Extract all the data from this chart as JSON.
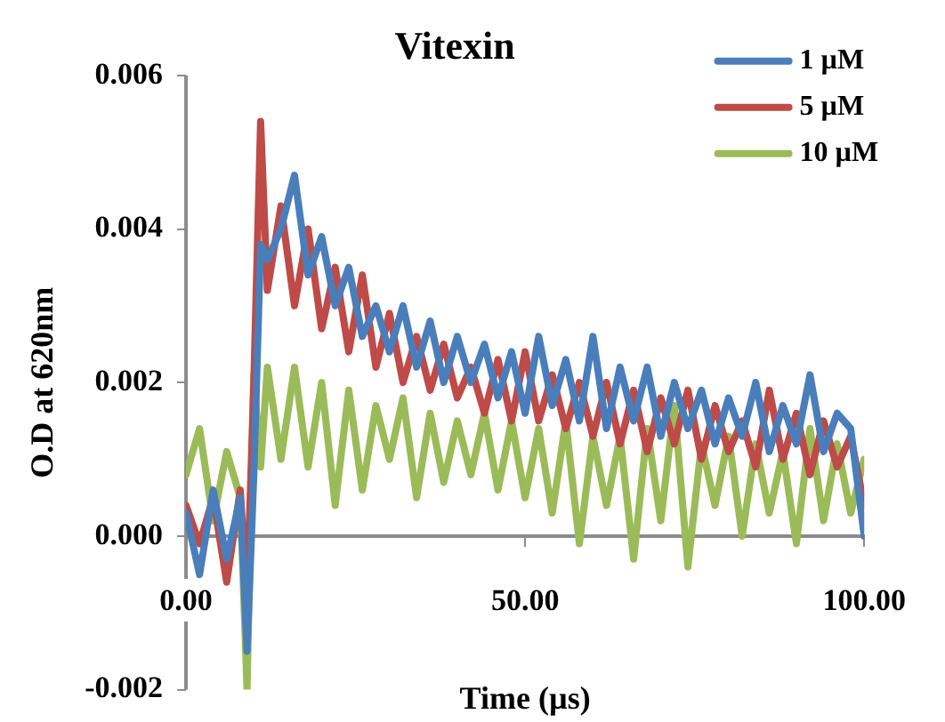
{
  "chart_data": {
    "type": "line",
    "title": "Vitexin",
    "xlabel": "Time (µs)",
    "ylabel": "O.D at 620nm",
    "x": [
      0,
      2,
      4,
      6,
      8,
      9,
      10,
      11,
      12,
      14,
      16,
      18,
      20,
      22,
      24,
      26,
      28,
      30,
      32,
      34,
      36,
      38,
      40,
      42,
      44,
      46,
      48,
      50,
      52,
      54,
      56,
      58,
      60,
      62,
      64,
      66,
      68,
      70,
      72,
      74,
      76,
      78,
      80,
      82,
      84,
      86,
      88,
      90,
      92,
      94,
      96,
      98,
      100
    ],
    "series": [
      {
        "name": "1 µM",
        "color": "#4a7ebb",
        "values": [
          0.0003,
          -0.0005,
          0.0006,
          -0.0003,
          0.0005,
          -0.0015,
          0.0008,
          0.0038,
          0.0036,
          0.004,
          0.0047,
          0.0034,
          0.0039,
          0.003,
          0.0035,
          0.0026,
          0.003,
          0.0024,
          0.003,
          0.0022,
          0.0028,
          0.002,
          0.0026,
          0.002,
          0.0025,
          0.0018,
          0.0024,
          0.0016,
          0.0026,
          0.0017,
          0.0023,
          0.0015,
          0.0026,
          0.0014,
          0.0022,
          0.0015,
          0.0022,
          0.0013,
          0.002,
          0.0014,
          0.0019,
          0.0012,
          0.0018,
          0.0013,
          0.002,
          0.0011,
          0.0017,
          0.0012,
          0.0021,
          0.0011,
          0.0016,
          0.0014,
          0.0
        ]
      },
      {
        "name": "5 µM",
        "color": "#be4b48",
        "values": [
          0.0004,
          -0.0001,
          0.0005,
          -0.0006,
          0.0006,
          -0.0008,
          0.002,
          0.0054,
          0.0032,
          0.0043,
          0.003,
          0.004,
          0.0027,
          0.0035,
          0.0024,
          0.0034,
          0.0022,
          0.0029,
          0.002,
          0.0026,
          0.0019,
          0.0025,
          0.0018,
          0.0022,
          0.0016,
          0.0023,
          0.0015,
          0.0024,
          0.0015,
          0.0021,
          0.0014,
          0.002,
          0.0013,
          0.002,
          0.0012,
          0.0019,
          0.0011,
          0.0018,
          0.0012,
          0.0019,
          0.001,
          0.0017,
          0.0011,
          0.0015,
          0.0009,
          0.0019,
          0.001,
          0.0016,
          0.0008,
          0.0015,
          0.0009,
          0.0013,
          0.0004
        ]
      },
      {
        "name": "10 µM",
        "color": "#9bbb59",
        "values": [
          0.0008,
          0.0014,
          0.0002,
          0.0011,
          0.0005,
          -0.002,
          0.0021,
          0.0009,
          0.0022,
          0.001,
          0.0022,
          0.0009,
          0.002,
          0.0004,
          0.0019,
          0.0006,
          0.0017,
          0.001,
          0.0018,
          0.0005,
          0.0016,
          0.0007,
          0.0015,
          0.0008,
          0.0016,
          0.0006,
          0.0015,
          0.0005,
          0.0014,
          0.0003,
          0.0015,
          -0.0001,
          0.0013,
          0.0004,
          0.0013,
          -0.0003,
          0.0014,
          0.0002,
          0.0017,
          -0.0004,
          0.0012,
          0.0004,
          0.0013,
          0.0,
          0.0012,
          0.0003,
          0.0011,
          -0.0001,
          0.0014,
          0.0002,
          0.0012,
          0.0003,
          0.001
        ]
      }
    ],
    "xlim": [
      0,
      100
    ],
    "xticks": [
      {
        "value": 0,
        "label": "0.00"
      },
      {
        "value": 50,
        "label": "50.00"
      },
      {
        "value": 100,
        "label": "100.00"
      }
    ],
    "ylim": [
      -0.002,
      0.006
    ],
    "yticks": [
      {
        "value": -0.002,
        "label": "-0.002"
      },
      {
        "value": 0,
        "label": "0.000"
      },
      {
        "value": 0.002,
        "label": "0.002"
      },
      {
        "value": 0.004,
        "label": "0.004"
      },
      {
        "value": 0.006,
        "label": "0.006"
      }
    ],
    "legend": "top right",
    "marker": "none",
    "line_style": "solid"
  }
}
